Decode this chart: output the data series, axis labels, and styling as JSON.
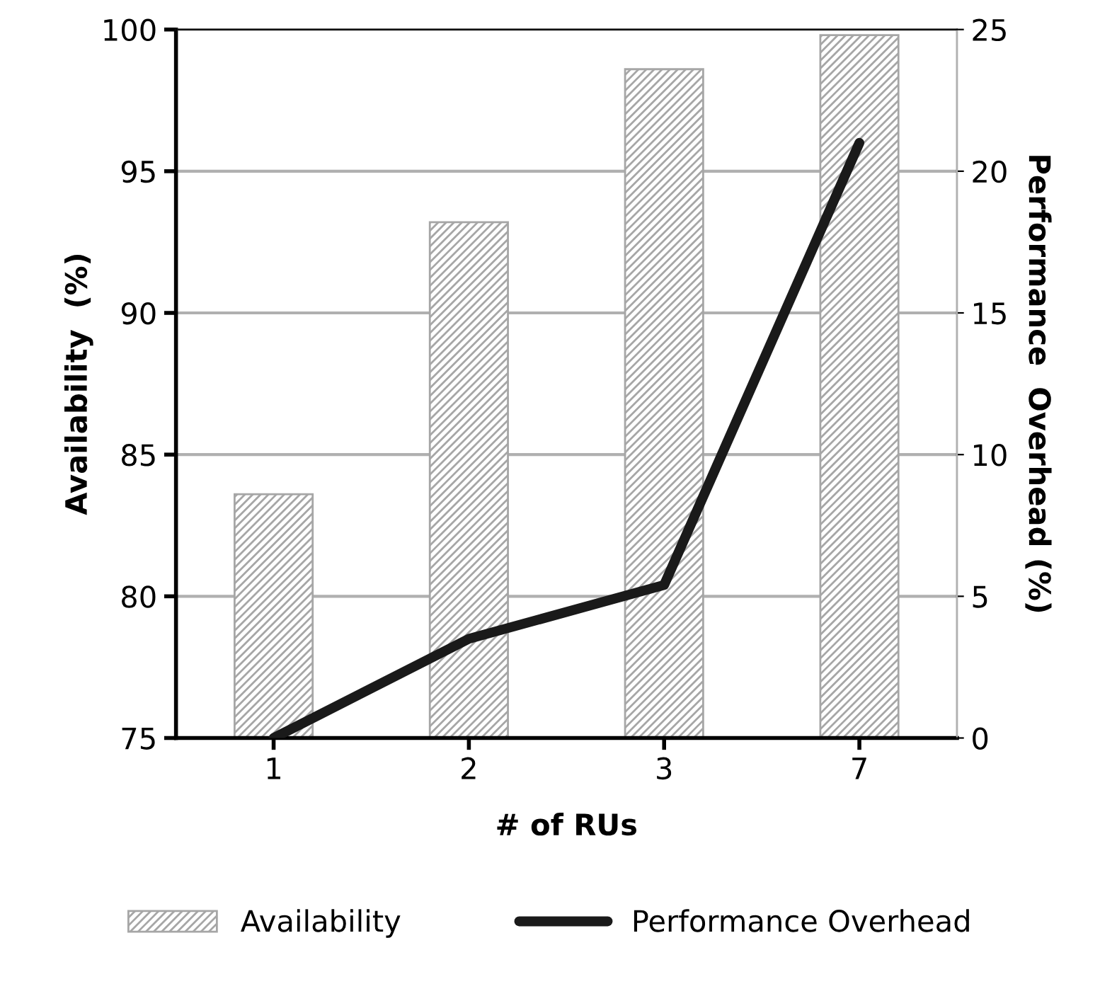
{
  "chart_data": {
    "type": "bar",
    "xlabel": "# of RUs",
    "ylabel": "Availability  (%)",
    "y2label": "Performance  Overhead (%)",
    "categories": [
      "1",
      "2",
      "3",
      "7"
    ],
    "series": [
      {
        "name": "Availability",
        "color": "#a6a6a6",
        "values": [
          83.6,
          93.2,
          98.6,
          99.8
        ]
      },
      {
        "name": "Performance Overhead",
        "type": "line",
        "axis": "y2",
        "color": "#1a1a1a",
        "values": [
          0,
          3.5,
          5.4,
          21.0
        ]
      }
    ],
    "ylim": [
      75,
      100
    ],
    "yticks": [
      75,
      80,
      85,
      90,
      95,
      100
    ],
    "y2lim": [
      0,
      25
    ],
    "y2ticks": [
      0,
      5,
      10,
      15,
      20,
      25
    ],
    "grid": "y",
    "legend": "bottom",
    "marker": "none",
    "line_style": "solid"
  }
}
